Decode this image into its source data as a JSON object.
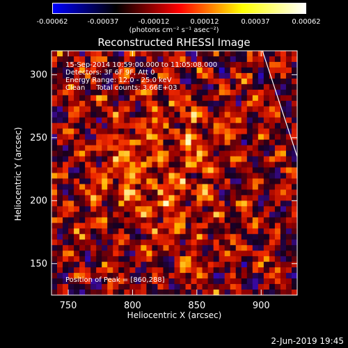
{
  "colorbar": {
    "ticks": [
      "-0.00062",
      "-0.00037",
      "-0.00012",
      "0.00012",
      "0.00037",
      "0.00062"
    ],
    "unit_label": "(photons cm⁻² s⁻¹ asec⁻²)",
    "colors": [
      "#0000ff",
      "#000000",
      "#ff0000",
      "#ffff00",
      "#ffffff"
    ]
  },
  "chart_data": {
    "type": "heatmap",
    "title": "Reconstructed RHESSI Image",
    "xlabel": "Heliocentric X (arcsec)",
    "ylabel": "Heliocentric Y (arcsec)",
    "xlim": [
      737,
      928
    ],
    "ylim": [
      125,
      319
    ],
    "xticks": [
      750,
      800,
      850,
      900
    ],
    "yticks": [
      150,
      200,
      250,
      300
    ],
    "value_range": [
      -0.00062,
      0.00062
    ],
    "peak_position": [
      860,
      288
    ],
    "limb_line": {
      "x": [
        901,
        928
      ],
      "y": [
        319,
        235
      ]
    }
  },
  "annotations": {
    "time_range": "15-Sep-2014 10:59:00.000 to 11:05:08.000",
    "detectors": "Detectors: 3F 6F 9F, Att 0",
    "energy": "Energy Range: 12.0 - 25.0 keV",
    "clean": "Clean     Total counts: 3.66E+03",
    "peak": "Position of Peak = [860,288]"
  },
  "footer": {
    "date": "2-Jun-2019 19:45"
  }
}
